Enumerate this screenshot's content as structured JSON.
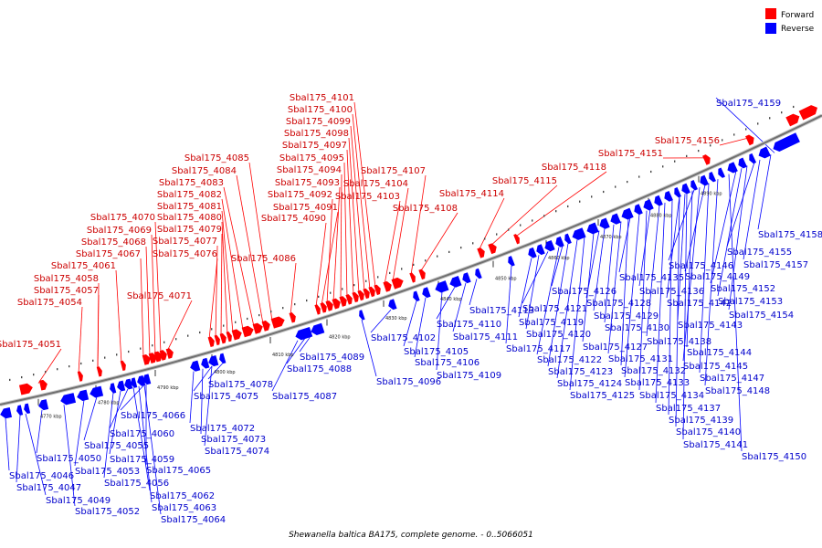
{
  "colors": {
    "forward": "#ff0000",
    "reverse": "#0000ff",
    "backbone": "#707070"
  },
  "legend": {
    "forward_label": "Forward",
    "reverse_label": "Reverse"
  },
  "caption": "Shewanella baltica BA175, complete genome. - 0..5066051",
  "axis_ticks": [
    "4770 kbp",
    "4780 kbp",
    "4790 kbp",
    "4800 kbp",
    "4810 kbp",
    "4820 kbp",
    "4830 kbp",
    "4840 kbp",
    "4850 kbp",
    "4860 kbp",
    "4870 kbp",
    "4880 kbp",
    "4890 kbp"
  ],
  "forward_labels": [
    "Sbal175_4051",
    "Sbal175_4054",
    "Sbal175_4057",
    "Sbal175_4058",
    "Sbal175_4061",
    "Sbal175_4067",
    "Sbal175_4068",
    "Sbal175_4069",
    "Sbal175_4070",
    "Sbal175_4071",
    "Sbal175_4076",
    "Sbal175_4077",
    "Sbal175_4079",
    "Sbal175_4080",
    "Sbal175_4081",
    "Sbal175_4082",
    "Sbal175_4083",
    "Sbal175_4084",
    "Sbal175_4085",
    "Sbal175_4086",
    "Sbal175_4090",
    "Sbal175_4091",
    "Sbal175_4092",
    "Sbal175_4093",
    "Sbal175_4094",
    "Sbal175_4095",
    "Sbal175_4097",
    "Sbal175_4098",
    "Sbal175_4099",
    "Sbal175_4100",
    "Sbal175_4101",
    "Sbal175_4103",
    "Sbal175_4104",
    "Sbal175_4107",
    "Sbal175_4108",
    "Sbal175_4114",
    "Sbal175_4115",
    "Sbal175_4118",
    "Sbal175_4151",
    "Sbal175_4156"
  ],
  "reverse_labels": [
    "Sbal175_4046",
    "Sbal175_4047",
    "Sbal175_4049",
    "Sbal175_4050",
    "Sbal175_4052",
    "Sbal175_4053",
    "Sbal175_4055",
    "Sbal175_4056",
    "Sbal175_4059",
    "Sbal175_4060",
    "Sbal175_4062",
    "Sbal175_4063",
    "Sbal175_4064",
    "Sbal175_4065",
    "Sbal175_4066",
    "Sbal175_4072",
    "Sbal175_4073",
    "Sbal175_4074",
    "Sbal175_4075",
    "Sbal175_4078",
    "Sbal175_4087",
    "Sbal175_4088",
    "Sbal175_4089",
    "Sbal175_4096",
    "Sbal175_4102",
    "Sbal175_4105",
    "Sbal175_4106",
    "Sbal175_4109",
    "Sbal175_4110",
    "Sbal175_4111",
    "Sbal175_4113",
    "Sbal175_4117",
    "Sbal175_4119",
    "Sbal175_4120",
    "Sbal175_4121",
    "Sbal175_4122",
    "Sbal175_4123",
    "Sbal175_4124",
    "Sbal175_4125",
    "Sbal175_4126",
    "Sbal175_4127",
    "Sbal175_4128",
    "Sbal175_4129",
    "Sbal175_4130",
    "Sbal175_4131",
    "Sbal175_4132",
    "Sbal175_4133",
    "Sbal175_4134",
    "Sbal175_4135",
    "Sbal175_4136",
    "Sbal175_4137",
    "Sbal175_4138",
    "Sbal175_4139",
    "Sbal175_4140",
    "Sbal175_4141",
    "Sbal175_4142",
    "Sbal175_4143",
    "Sbal175_4144",
    "Sbal175_4145",
    "Sbal175_4146",
    "Sbal175_4147",
    "Sbal175_4148",
    "Sbal175_4149",
    "Sbal175_4150",
    "Sbal175_4152",
    "Sbal175_4153",
    "Sbal175_4154",
    "Sbal175_4155",
    "Sbal175_4157",
    "Sbal175_4158",
    "Sbal175_4159"
  ]
}
